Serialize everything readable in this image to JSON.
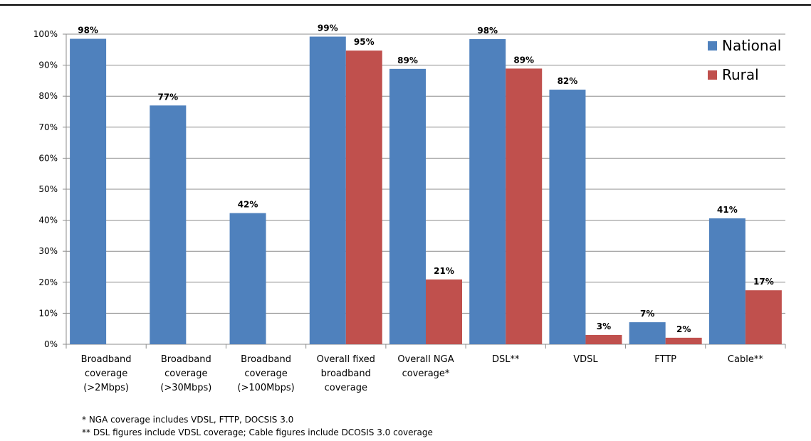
{
  "chart_data": {
    "type": "bar",
    "categories": [
      [
        "Broadband",
        "coverage",
        "(>2Mbps)"
      ],
      [
        "Broadband",
        "coverage",
        "(>30Mbps)"
      ],
      [
        "Broadband",
        "coverage",
        "(>100Mbps)"
      ],
      [
        "Overall fixed",
        "broadband",
        "coverage"
      ],
      [
        "Overall NGA",
        "coverage*"
      ],
      [
        "DSL**"
      ],
      [
        "VDSL"
      ],
      [
        "FTTP"
      ],
      [
        "Cable**"
      ]
    ],
    "series": [
      {
        "name": "National",
        "color": "#4f81bd",
        "values": [
          98.5,
          77,
          42.3,
          99.2,
          88.8,
          98.4,
          82.1,
          7.1,
          40.6
        ],
        "labels": [
          "98%",
          "77%",
          "42%",
          "99%",
          "89%",
          "98%",
          "82%",
          "7%",
          "41%"
        ]
      },
      {
        "name": "Rural",
        "color": "#c0504d",
        "values": [
          null,
          null,
          null,
          94.7,
          20.9,
          88.9,
          3.0,
          2.1,
          17.4
        ],
        "labels": [
          null,
          null,
          null,
          "95%",
          "21%",
          "89%",
          "3%",
          "2%",
          "17%"
        ]
      }
    ],
    "ylim": [
      0,
      100
    ],
    "yticks": [
      "0%",
      "10%",
      "20%",
      "30%",
      "40%",
      "50%",
      "60%",
      "70%",
      "80%",
      "90%",
      "100%"
    ],
    "grid": true,
    "legend": "top-right"
  },
  "footnotes": [
    "* NGA coverage includes VDSL, FTTP, DOCSIS 3.0",
    "** DSL figures include VDSL coverage; Cable figures include DCOSIS 3.0 coverage"
  ]
}
